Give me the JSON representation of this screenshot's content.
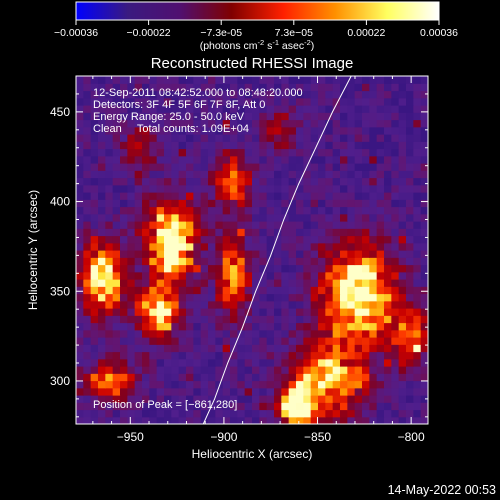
{
  "colorbar": {
    "tick_labels": [
      "-0.00036",
      "-0.00022",
      "-7.3e-05",
      "7.3e-05",
      "0.00022",
      "0.00036"
    ],
    "range": [
      -0.00036,
      0.00036
    ],
    "unit_main": "(photons cm",
    "unit_sup1": "-2",
    "unit_mid": " s",
    "unit_sup2": "-1",
    "unit_mid2": " asec",
    "unit_sup3": "-2",
    "unit_end": ")",
    "colormap": [
      "#0000ff",
      "#3a1a80",
      "#501070",
      "#800000",
      "#ff2000",
      "#ff9000",
      "#ffff60",
      "#ffffff"
    ]
  },
  "chart_data": {
    "type": "heatmap",
    "title": "Reconstructed RHESSI Image",
    "xlabel": "Heliocentric X (arcsec)",
    "ylabel": "Heliocentric Y (arcsec)",
    "xlim": [
      -979,
      -791
    ],
    "ylim": [
      276,
      470
    ],
    "x_ticks": [
      -950,
      -900,
      -850,
      -800
    ],
    "x_tick_labels": [
      "−950",
      "−900",
      "−850",
      "−800"
    ],
    "y_ticks": [
      300,
      350,
      400,
      450
    ],
    "y_tick_labels": [
      "300",
      "350",
      "400",
      "450"
    ],
    "grid": false,
    "annotations": [
      "12-Sep-2011 08:42:52.000 to 08:48:20.000",
      "Detectors: 3F 4F 5F 6F 7F 8F, Att 0",
      "Energy Range: 25.0 - 50.0 keV",
      "Clean     Total counts: 1.09E+04"
    ],
    "peak_label": "Position of Peak = [−861,280]",
    "peak": [
      -861,
      280
    ],
    "limb_curve": [
      [
        -911,
        276
      ],
      [
        -905,
        290
      ],
      [
        -898,
        310
      ],
      [
        -890,
        330
      ],
      [
        -883,
        350
      ],
      [
        -875,
        370
      ],
      [
        -868,
        390
      ],
      [
        -860,
        410
      ],
      [
        -851,
        430
      ],
      [
        -842,
        450
      ],
      [
        -832,
        470
      ]
    ],
    "hotspots": [
      {
        "x": -965,
        "y": 357,
        "sx": 8,
        "sy": 14,
        "amp": 1.0
      },
      {
        "x": -928,
        "y": 378,
        "sx": 10,
        "sy": 16,
        "amp": 1.0
      },
      {
        "x": -935,
        "y": 338,
        "sx": 8,
        "sy": 10,
        "amp": 0.8
      },
      {
        "x": -895,
        "y": 360,
        "sx": 6,
        "sy": 18,
        "amp": 0.7
      },
      {
        "x": -895,
        "y": 412,
        "sx": 7,
        "sy": 10,
        "amp": 0.7
      },
      {
        "x": -828,
        "y": 348,
        "sx": 14,
        "sy": 20,
        "amp": 1.0
      },
      {
        "x": -845,
        "y": 300,
        "sx": 14,
        "sy": 14,
        "amp": 0.8
      },
      {
        "x": -862,
        "y": 285,
        "sx": 6,
        "sy": 8,
        "amp": 1.0
      },
      {
        "x": -960,
        "y": 300,
        "sx": 10,
        "sy": 8,
        "amp": 0.6
      },
      {
        "x": -800,
        "y": 325,
        "sx": 6,
        "sy": 12,
        "amp": 0.7
      },
      {
        "x": -870,
        "y": 440,
        "sx": 6,
        "sy": 8,
        "amp": 0.4
      },
      {
        "x": -945,
        "y": 430,
        "sx": 8,
        "sy": 8,
        "amp": 0.35
      }
    ],
    "background_level": 0.1
  },
  "footer": {
    "timestamp": "14-May-2022 00:53"
  }
}
